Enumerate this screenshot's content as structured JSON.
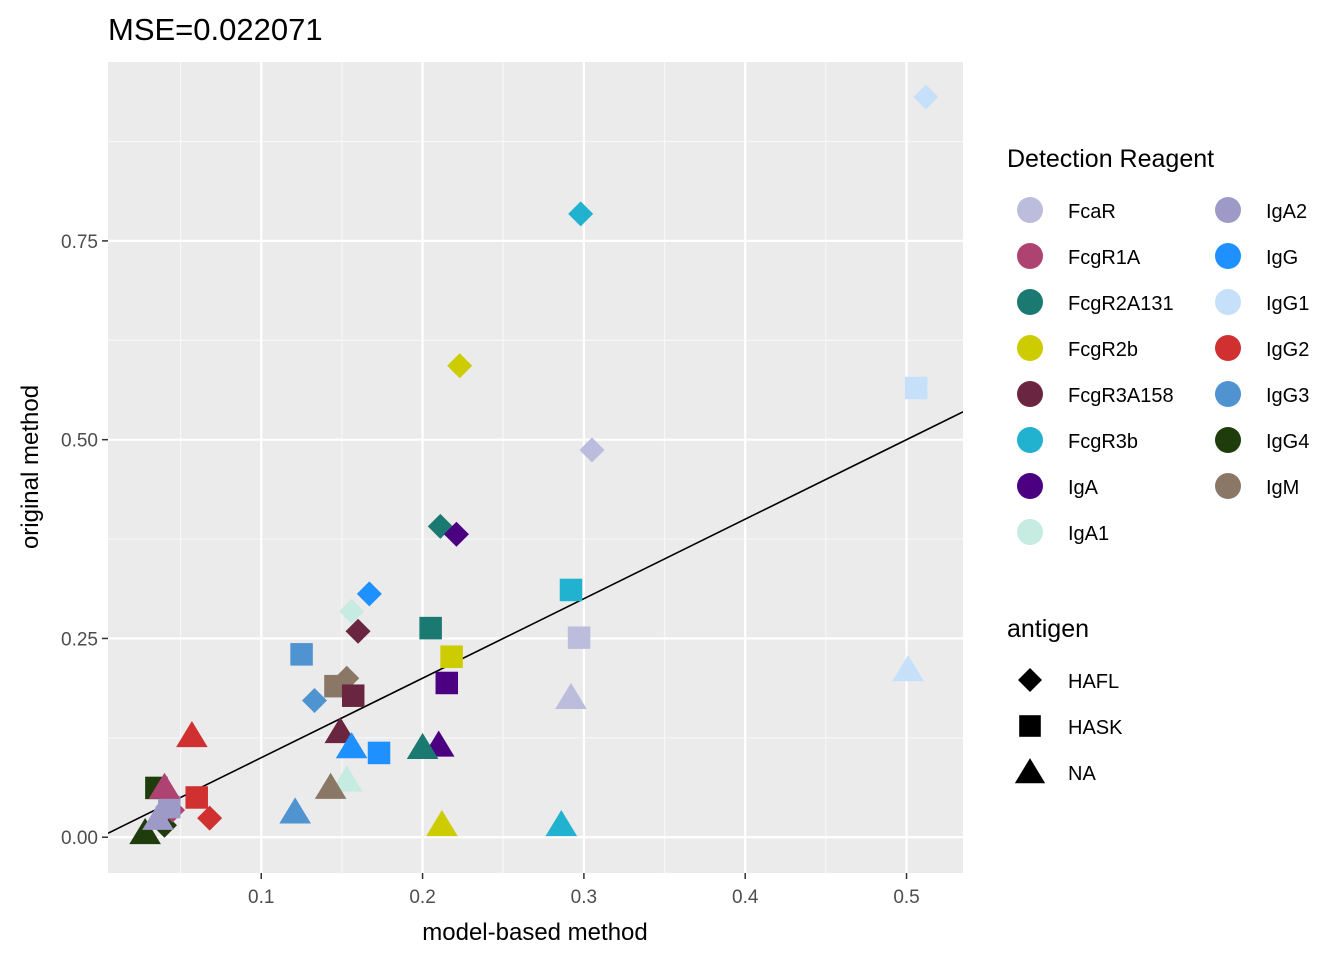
{
  "chart_data": {
    "type": "scatter",
    "title": "MSE=0.022071",
    "xlabel": "model-based method",
    "ylabel": "original method",
    "xlim": [
      0.005,
      0.535
    ],
    "ylim": [
      -0.045,
      0.975
    ],
    "x_ticks": [
      0.1,
      0.2,
      0.3,
      0.4,
      0.5
    ],
    "x_tick_labels": [
      "0.1",
      "0.2",
      "0.3",
      "0.4",
      "0.5"
    ],
    "y_ticks": [
      0.0,
      0.25,
      0.5,
      0.75
    ],
    "y_tick_labels": [
      "0.00",
      "0.25",
      "0.50",
      "0.75"
    ],
    "grid": true,
    "reference_line": {
      "intercept": 0,
      "slope": 1
    },
    "legend_position": "right",
    "color_legend": {
      "title": "Detection Reagent",
      "items": [
        {
          "name": "FcaR",
          "color": "#bcbddc"
        },
        {
          "name": "FcgR1A",
          "color": "#ae4371"
        },
        {
          "name": "FcgR2A131",
          "color": "#1a7a72"
        },
        {
          "name": "FcgR2b",
          "color": "#cccc00"
        },
        {
          "name": "FcgR3A158",
          "color": "#6a2640"
        },
        {
          "name": "FcgR3b",
          "color": "#20b2cf"
        },
        {
          "name": "IgA",
          "color": "#4b0082"
        },
        {
          "name": "IgA1",
          "color": "#c6ebe1"
        },
        {
          "name": "IgA2",
          "color": "#9e9ac8"
        },
        {
          "name": "IgG",
          "color": "#1e90ff"
        },
        {
          "name": "IgG1",
          "color": "#c6e0fa"
        },
        {
          "name": "IgG2",
          "color": "#d03030"
        },
        {
          "name": "IgG3",
          "color": "#4f93d0"
        },
        {
          "name": "IgG4",
          "color": "#1f3d0c"
        },
        {
          "name": "IgM",
          "color": "#8b7765"
        }
      ]
    },
    "shape_legend": {
      "title": "antigen",
      "items": [
        {
          "name": "HAFL",
          "shape": "diamond"
        },
        {
          "name": "HASK",
          "shape": "square"
        },
        {
          "name": "NA",
          "shape": "triangle"
        }
      ]
    },
    "points": [
      {
        "reagent": "IgG1",
        "antigen": "HAFL",
        "x": 0.512,
        "y": 0.931
      },
      {
        "reagent": "FcgR3b",
        "antigen": "HAFL",
        "x": 0.298,
        "y": 0.784
      },
      {
        "reagent": "FcgR2b",
        "antigen": "HAFL",
        "x": 0.223,
        "y": 0.593
      },
      {
        "reagent": "FcaR",
        "antigen": "HAFL",
        "x": 0.305,
        "y": 0.487
      },
      {
        "reagent": "FcgR2A131",
        "antigen": "HAFL",
        "x": 0.211,
        "y": 0.391
      },
      {
        "reagent": "IgA",
        "antigen": "HAFL",
        "x": 0.221,
        "y": 0.381
      },
      {
        "reagent": "IgG",
        "antigen": "HAFL",
        "x": 0.167,
        "y": 0.306
      },
      {
        "reagent": "IgA1",
        "antigen": "HAFL",
        "x": 0.156,
        "y": 0.284
      },
      {
        "reagent": "FcgR3A158",
        "antigen": "HAFL",
        "x": 0.16,
        "y": 0.259
      },
      {
        "reagent": "IgM",
        "antigen": "HAFL",
        "x": 0.153,
        "y": 0.2
      },
      {
        "reagent": "IgG3",
        "antigen": "HAFL",
        "x": 0.133,
        "y": 0.172
      },
      {
        "reagent": "IgG2",
        "antigen": "HAFL",
        "x": 0.068,
        "y": 0.024
      },
      {
        "reagent": "IgG4",
        "antigen": "HAFL",
        "x": 0.04,
        "y": 0.015
      },
      {
        "reagent": "FcgR1A",
        "antigen": "HAFL",
        "x": 0.045,
        "y": 0.034
      },
      {
        "reagent": "IgA2",
        "antigen": "HAFL",
        "x": 0.042,
        "y": 0.038
      },
      {
        "reagent": "IgG1",
        "antigen": "HASK",
        "x": 0.506,
        "y": 0.565
      },
      {
        "reagent": "FcgR3b",
        "antigen": "HASK",
        "x": 0.292,
        "y": 0.311
      },
      {
        "reagent": "FcgR2A131",
        "antigen": "HASK",
        "x": 0.205,
        "y": 0.263
      },
      {
        "reagent": "FcaR",
        "antigen": "HASK",
        "x": 0.297,
        "y": 0.251
      },
      {
        "reagent": "IgG3",
        "antigen": "HASK",
        "x": 0.125,
        "y": 0.23
      },
      {
        "reagent": "FcgR2b",
        "antigen": "HASK",
        "x": 0.218,
        "y": 0.227
      },
      {
        "reagent": "IgA",
        "antigen": "HASK",
        "x": 0.215,
        "y": 0.194
      },
      {
        "reagent": "IgM",
        "antigen": "HASK",
        "x": 0.146,
        "y": 0.19
      },
      {
        "reagent": "FcgR3A158",
        "antigen": "HASK",
        "x": 0.157,
        "y": 0.178
      },
      {
        "reagent": "IgG",
        "antigen": "HASK",
        "x": 0.173,
        "y": 0.106
      },
      {
        "reagent": "IgG4",
        "antigen": "HASK",
        "x": 0.035,
        "y": 0.062
      },
      {
        "reagent": "IgG2",
        "antigen": "HASK",
        "x": 0.06,
        "y": 0.05
      },
      {
        "reagent": "IgA2",
        "antigen": "HASK",
        "x": 0.043,
        "y": 0.038
      },
      {
        "reagent": "IgG1",
        "antigen": "NA",
        "x": 0.501,
        "y": 0.211
      },
      {
        "reagent": "FcaR",
        "antigen": "NA",
        "x": 0.292,
        "y": 0.176
      },
      {
        "reagent": "FcgR3A158",
        "antigen": "NA",
        "x": 0.149,
        "y": 0.133
      },
      {
        "reagent": "IgG2",
        "antigen": "NA",
        "x": 0.057,
        "y": 0.128
      },
      {
        "reagent": "IgA",
        "antigen": "NA",
        "x": 0.21,
        "y": 0.116
      },
      {
        "reagent": "FcgR2A131",
        "antigen": "NA",
        "x": 0.2,
        "y": 0.113
      },
      {
        "reagent": "IgG",
        "antigen": "NA",
        "x": 0.156,
        "y": 0.114
      },
      {
        "reagent": "IgA1",
        "antigen": "NA",
        "x": 0.153,
        "y": 0.072
      },
      {
        "reagent": "IgM",
        "antigen": "NA",
        "x": 0.143,
        "y": 0.063
      },
      {
        "reagent": "FcgR1A",
        "antigen": "NA",
        "x": 0.04,
        "y": 0.063
      },
      {
        "reagent": "IgG3",
        "antigen": "NA",
        "x": 0.121,
        "y": 0.032
      },
      {
        "reagent": "FcgR2b",
        "antigen": "NA",
        "x": 0.212,
        "y": 0.016
      },
      {
        "reagent": "FcgR3b",
        "antigen": "NA",
        "x": 0.286,
        "y": 0.016
      },
      {
        "reagent": "IgG4",
        "antigen": "NA",
        "x": 0.028,
        "y": 0.006
      },
      {
        "reagent": "IgA2",
        "antigen": "NA",
        "x": 0.036,
        "y": 0.024
      }
    ]
  }
}
